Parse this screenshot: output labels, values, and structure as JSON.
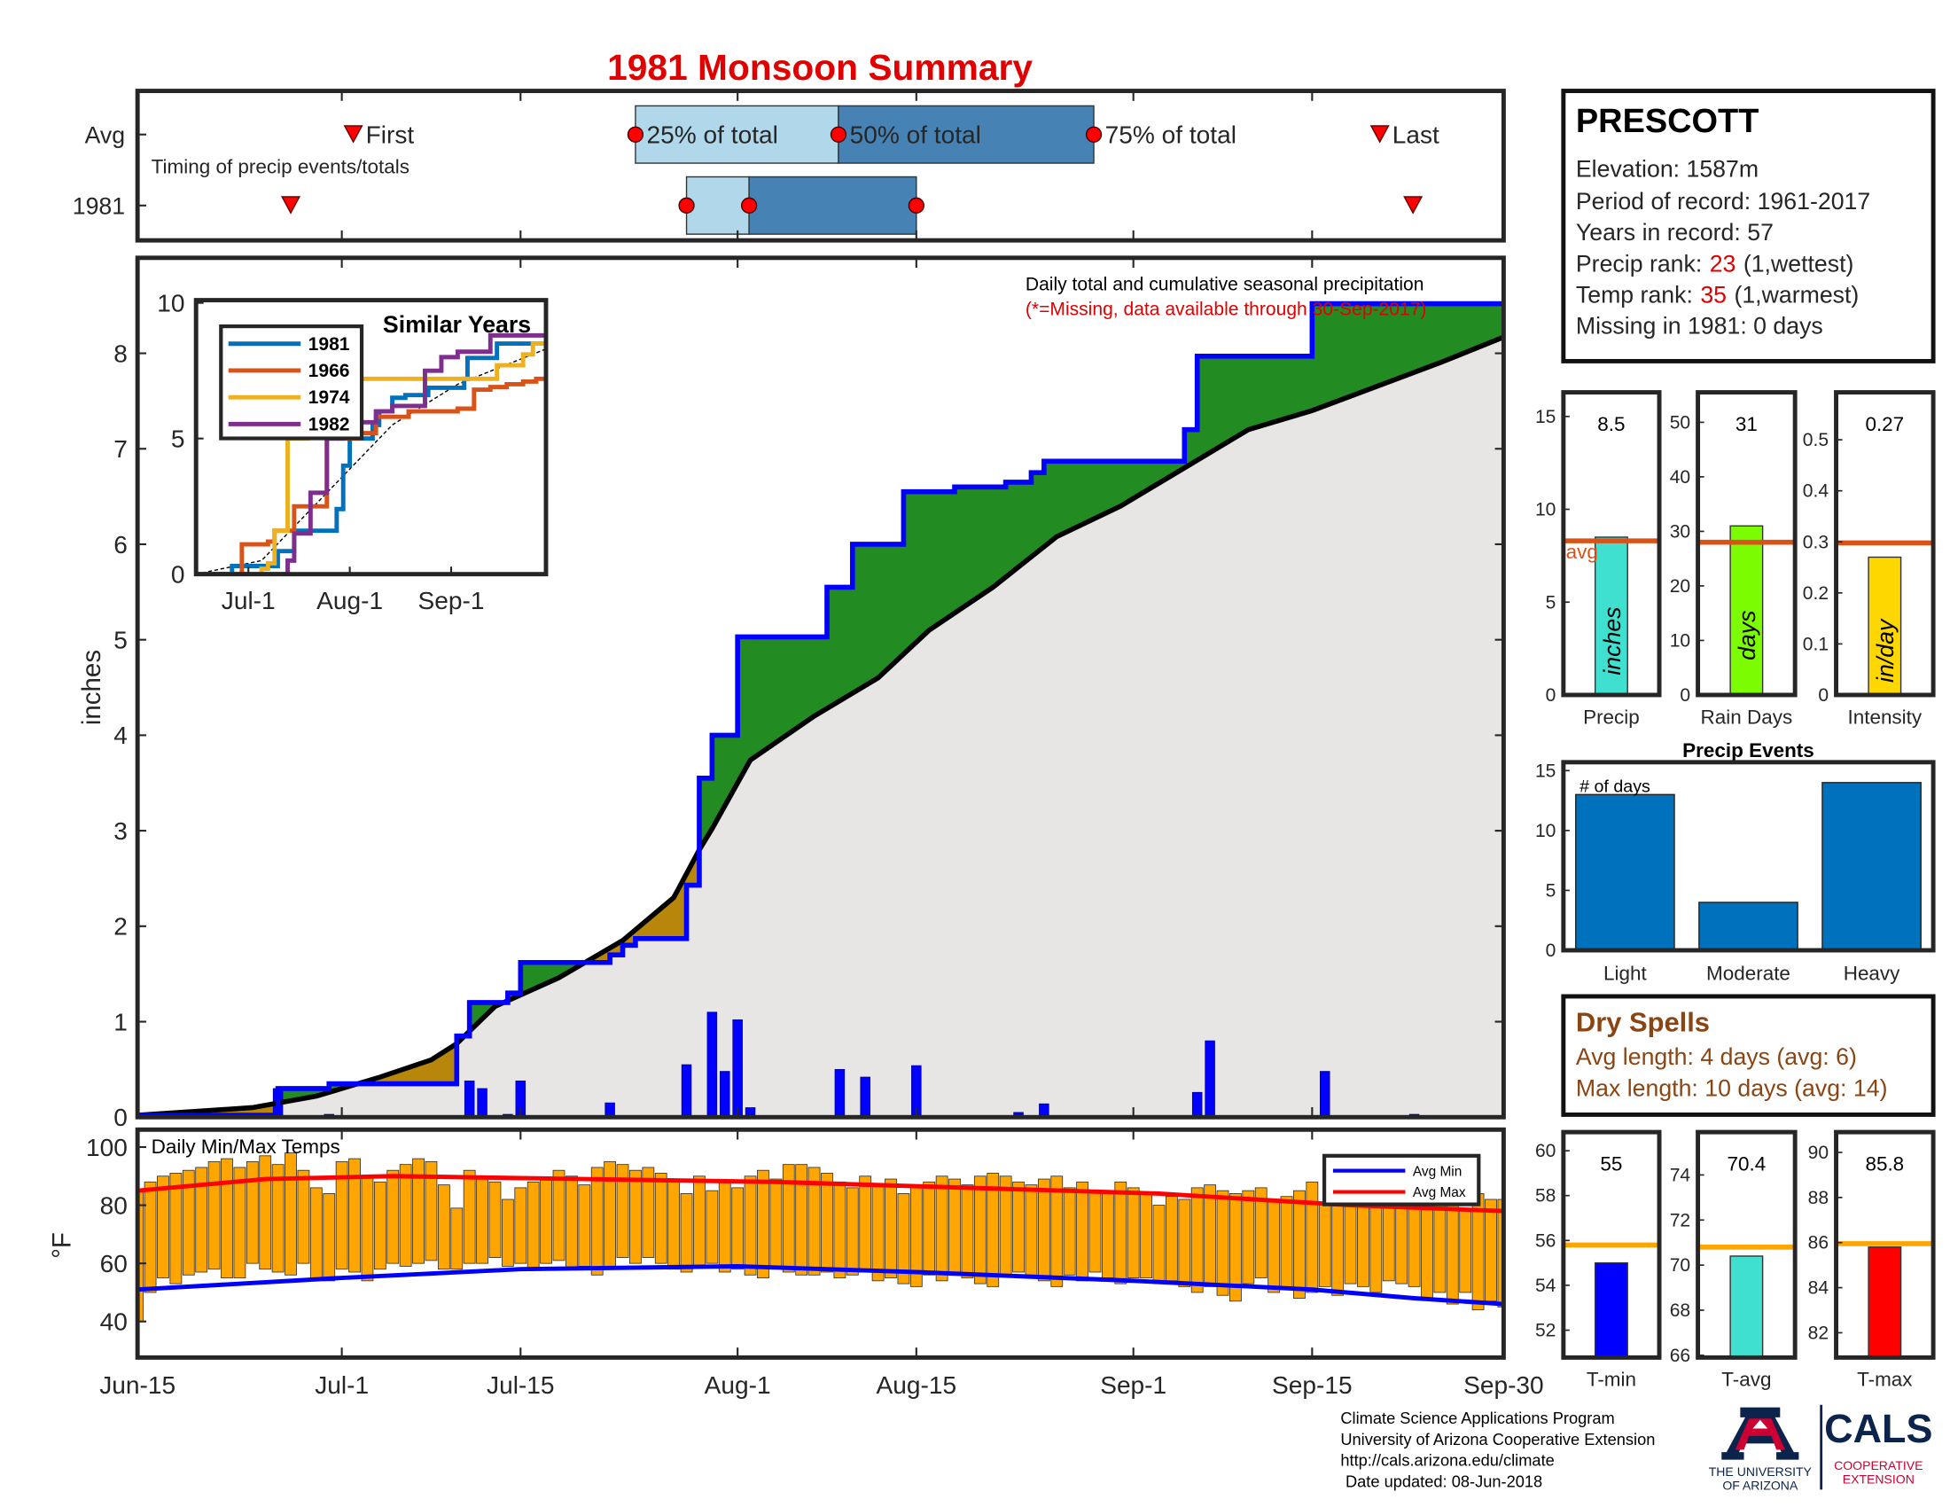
{
  "title": "1981 Monsoon Summary",
  "station": {
    "name": "PRESCOTT",
    "elevation": "Elevation: 1587m",
    "period": "Period of record: 1961-2017",
    "years": "Years in record: 57",
    "precip_rank": {
      "label": "Precip rank:",
      "value": 23,
      "note": "(1,wettest)"
    },
    "temp_rank": {
      "label": "Temp rank:",
      "value": 35,
      "note": "(1,warmest)"
    },
    "missing": "Missing in 1981: 0 days"
  },
  "dry_spells": {
    "title": "Dry Spells",
    "avg": "Avg length: 4 days (avg: 6)",
    "max": "Max length: 10 days (avg: 14)"
  },
  "footer": [
    "Climate Science Applications Program",
    "University of Arizona Cooperative Extension",
    "http://cals.arizona.edu/climate",
    "Date updated: 08-Jun-2018"
  ],
  "logos": {
    "university": [
      "THE UNIVERSITY",
      "OF ARIZONA"
    ],
    "cals": "CALS",
    "cals_sub": [
      "COOPERATIVE",
      "EXTENSION"
    ]
  },
  "chart_data": [
    {
      "type": "timing",
      "note": "Timing of precip events/totals",
      "xlim": [
        0,
        107
      ],
      "xticks": [
        0,
        16,
        30,
        47,
        61,
        78,
        92,
        107
      ],
      "marker_labels": {
        "first": "First",
        "p25": "25% of total",
        "p50": "50% of total",
        "p75": "75% of total",
        "last": "Last"
      },
      "rows": [
        {
          "label": "Avg",
          "first": 16.9,
          "p25": 39,
          "p50": 54.9,
          "p75": 74.9,
          "last": 97.3
        },
        {
          "label": "1981",
          "first": 12,
          "p25": 43,
          "p50": 47.9,
          "p75": 61,
          "last": 99.9
        }
      ],
      "colors": {
        "p25": "#b0d8ea",
        "p50": "#4682b4",
        "marker": "#ff0000"
      }
    },
    {
      "type": "step-area",
      "annotation": "Daily total and cumulative seasonal precipitation",
      "note": "(*=Missing, data available through 30-Sep-2017)",
      "ylabel": "inches",
      "xlim": [
        0,
        107
      ],
      "ylim": [
        0,
        9
      ],
      "yticks": [
        0,
        1,
        2,
        3,
        4,
        5,
        6,
        7,
        8
      ],
      "xticks": [
        0,
        16,
        30,
        47,
        61,
        78,
        92,
        107
      ],
      "observed": {
        "color": "#0000ff",
        "x": [
          0,
          11,
          15,
          25,
          26,
          29,
          30,
          37,
          38,
          39,
          43,
          44,
          45,
          47,
          54,
          56,
          60,
          64,
          68,
          70,
          71,
          82,
          83,
          92,
          107
        ],
        "values": [
          0.02,
          0.3,
          0.35,
          0.85,
          1.2,
          1.3,
          1.62,
          1.7,
          1.8,
          1.87,
          2.43,
          3.55,
          4.0,
          5.03,
          5.55,
          6.0,
          6.55,
          6.6,
          6.65,
          6.75,
          6.87,
          7.2,
          7.97,
          8.52,
          8.52
        ]
      },
      "average": {
        "color": "#000000",
        "x": [
          0,
          9,
          14,
          19,
          23,
          25,
          28,
          33,
          38,
          42,
          44,
          45,
          48,
          53,
          58,
          62,
          67,
          72,
          77,
          82,
          87,
          92,
          97,
          102,
          107
        ],
        "values": [
          0.02,
          0.1,
          0.22,
          0.42,
          0.6,
          0.77,
          1.16,
          1.46,
          1.85,
          2.3,
          2.8,
          3.02,
          3.74,
          4.2,
          4.6,
          5.1,
          5.55,
          6.08,
          6.4,
          6.8,
          7.2,
          7.4,
          7.65,
          7.9,
          8.17
        ]
      },
      "daily": {
        "color": "#0000ff",
        "x": [
          11,
          15,
          26,
          27,
          29,
          30,
          37,
          43,
          45,
          46,
          47,
          48,
          55,
          57,
          61,
          69,
          71,
          83,
          84,
          93,
          100
        ],
        "values": [
          0.3,
          0.03,
          0.38,
          0.3,
          0.03,
          0.38,
          0.15,
          0.55,
          1.1,
          0.48,
          1.02,
          0.1,
          0.5,
          0.42,
          0.54,
          0.05,
          0.14,
          0.26,
          0.8,
          0.48,
          0.03
        ]
      },
      "above_color": "#228b22",
      "below_color": "#b8860b",
      "base_color": "#e8e6e5"
    },
    {
      "type": "line",
      "title": "Similar Years",
      "xlim": [
        0,
        107
      ],
      "ylim": [
        0,
        10.1
      ],
      "yticks": [
        0,
        5,
        10
      ],
      "xticks": [
        {
          "value": 16,
          "label": "Jul-1"
        },
        {
          "value": 47,
          "label": "Aug-1"
        },
        {
          "value": 78,
          "label": "Sep-1"
        }
      ],
      "series": [
        {
          "name": "1981",
          "color": "#0072bd",
          "x": [
            0,
            11,
            25,
            30,
            43,
            45,
            47,
            54,
            56,
            60,
            64,
            71,
            82,
            83,
            92,
            107
          ],
          "values": [
            0,
            0.3,
            0.85,
            1.6,
            2.4,
            4.0,
            5.0,
            5.5,
            6.0,
            6.5,
            6.6,
            6.87,
            7.2,
            7.97,
            8.5,
            8.5
          ]
        },
        {
          "name": "1966",
          "color": "#d95319",
          "x": [
            0,
            12,
            14,
            22,
            24,
            30,
            40,
            50,
            55,
            65,
            72,
            80,
            85,
            90,
            95,
            100,
            104,
            107
          ],
          "values": [
            0,
            0,
            1.1,
            1.2,
            1.6,
            2.5,
            5.0,
            5.2,
            5.8,
            6.0,
            6.0,
            6.1,
            6.8,
            6.9,
            7.0,
            7.1,
            7.2,
            7.1
          ]
        },
        {
          "name": "1974",
          "color": "#edb120",
          "x": [
            0,
            20,
            22,
            24,
            28,
            34,
            40,
            60,
            85,
            92,
            100,
            103,
            107
          ],
          "values": [
            0,
            0.2,
            0.4,
            1.6,
            5.0,
            7.0,
            7.2,
            7.2,
            7.2,
            7.7,
            8.1,
            8.5,
            9.2
          ]
        },
        {
          "name": "1982",
          "color": "#7e2f8e",
          "x": [
            0,
            26,
            28,
            30,
            35,
            40,
            45,
            50,
            55,
            60,
            70,
            75,
            80,
            90,
            100,
            107
          ],
          "values": [
            0,
            0,
            0.5,
            1.5,
            3.0,
            5.0,
            5.2,
            5.6,
            6.0,
            6.2,
            7.5,
            8.0,
            8.2,
            8.8,
            8.8,
            8.8
          ]
        }
      ],
      "average": {
        "color": "#000000",
        "x": [
          0,
          20,
          40,
          60,
          80,
          107
        ],
        "values": [
          0,
          0.5,
          3,
          5.5,
          7,
          8.3
        ]
      }
    },
    {
      "type": "range-bar",
      "title": "Daily Min/Max Temps",
      "ylabel": "°F",
      "xlim": [
        0,
        107
      ],
      "ylim": [
        27.6,
        106
      ],
      "yticks": [
        40,
        60,
        80,
        100
      ],
      "xticks": [
        {
          "value": 0,
          "label": "Jun-15"
        },
        {
          "value": 16,
          "label": "Jul-1"
        },
        {
          "value": 30,
          "label": "Jul-15"
        },
        {
          "value": 47,
          "label": "Aug-1"
        },
        {
          "value": 61,
          "label": "Aug-15"
        },
        {
          "value": 78,
          "label": "Sep-1"
        },
        {
          "value": 92,
          "label": "Sep-15"
        },
        {
          "value": 107,
          "label": "Sep-30"
        }
      ],
      "color": "#ffa500",
      "x": [
        0,
        1,
        2,
        3,
        4,
        5,
        6,
        7,
        8,
        9,
        10,
        11,
        12,
        13,
        14,
        15,
        16,
        17,
        18,
        19,
        20,
        21,
        22,
        23,
        24,
        25,
        26,
        27,
        28,
        29,
        30,
        31,
        32,
        33,
        34,
        35,
        36,
        37,
        38,
        39,
        40,
        41,
        42,
        43,
        44,
        45,
        46,
        47,
        48,
        49,
        50,
        51,
        52,
        53,
        54,
        55,
        56,
        57,
        58,
        59,
        60,
        61,
        62,
        63,
        64,
        65,
        66,
        67,
        68,
        69,
        70,
        71,
        72,
        73,
        74,
        75,
        76,
        77,
        78,
        79,
        80,
        81,
        82,
        83,
        84,
        85,
        86,
        87,
        88,
        89,
        90,
        91,
        92,
        93,
        94,
        95,
        96,
        97,
        98,
        99,
        100,
        101,
        102,
        103,
        104,
        105,
        106,
        107
      ],
      "max": [
        85,
        88,
        90,
        91,
        92,
        93,
        95,
        96,
        93,
        95,
        97,
        94,
        98,
        92,
        86,
        84,
        95,
        96,
        90,
        88,
        92,
        94,
        96,
        95,
        87,
        79,
        92,
        90,
        88,
        82,
        86,
        88,
        89,
        92,
        90,
        87,
        93,
        95,
        94,
        92,
        93,
        91,
        88,
        84,
        90,
        85,
        88,
        86,
        90,
        92,
        89,
        94,
        94,
        93,
        91,
        88,
        86,
        90,
        87,
        89,
        84,
        86,
        88,
        90,
        89,
        87,
        90,
        91,
        90,
        88,
        87,
        89,
        90,
        86,
        88,
        85,
        84,
        88,
        86,
        84,
        80,
        83,
        82,
        86,
        87,
        85,
        84,
        85,
        86,
        82,
        83,
        85,
        88,
        80,
        84,
        82,
        83,
        86,
        87,
        82,
        84,
        80,
        81,
        80,
        78,
        84,
        82,
        82
      ],
      "min": [
        40,
        50,
        55,
        53,
        56,
        57,
        58,
        55,
        55,
        60,
        58,
        57,
        56,
        60,
        55,
        54,
        58,
        57,
        54,
        58,
        60,
        59,
        60,
        61,
        58,
        58,
        60,
        60,
        62,
        59,
        60,
        58,
        60,
        61,
        58,
        59,
        56,
        58,
        62,
        60,
        62,
        60,
        58,
        57,
        59,
        60,
        57,
        58,
        56,
        55,
        58,
        57,
        56,
        56,
        57,
        55,
        56,
        57,
        54,
        55,
        53,
        52,
        56,
        54,
        56,
        55,
        53,
        52,
        56,
        57,
        55,
        54,
        52,
        56,
        54,
        57,
        55,
        53,
        55,
        55,
        53,
        54,
        52,
        50,
        52,
        49,
        47,
        53,
        55,
        50,
        52,
        48,
        50,
        52,
        49,
        53,
        52,
        50,
        54,
        53,
        52,
        48,
        50,
        46,
        50,
        44,
        47,
        45
      ],
      "series": [
        {
          "name": "Avg Min",
          "color": "#0000ff",
          "x": [
            0,
            16,
            30,
            47,
            61,
            78,
            92,
            100,
            107
          ],
          "values": [
            51,
            55,
            58,
            59,
            57,
            54,
            51,
            48,
            46
          ]
        },
        {
          "name": "Avg Max",
          "color": "#ff0000",
          "x": [
            0,
            10,
            20,
            35,
            50,
            65,
            80,
            95,
            107
          ],
          "values": [
            85,
            89,
            90,
            89,
            88,
            86,
            84,
            80,
            78
          ]
        }
      ]
    },
    {
      "type": "summary-bar",
      "label": "Precip",
      "unit": "inches",
      "value": 8.5,
      "avg": 8.3,
      "avg_label": "avg",
      "color": "#40e0d0",
      "avg_color": "#d95319",
      "ylim": [
        0,
        16.3
      ],
      "yticks": [
        0,
        5,
        10,
        15
      ]
    },
    {
      "type": "summary-bar",
      "label": "Rain Days",
      "unit": "days",
      "value": 31,
      "avg": 28,
      "color": "#7cfc00",
      "avg_color": "#d95319",
      "ylim": [
        0,
        55.5
      ],
      "yticks": [
        0,
        10,
        20,
        30,
        40,
        50
      ]
    },
    {
      "type": "summary-bar",
      "label": "Intensity",
      "unit": "in/day",
      "value": 0.27,
      "avg": 0.298,
      "color": "#ffd700",
      "avg_color": "#d95319",
      "ylim": [
        0,
        0.593
      ],
      "yticks": [
        0,
        0.1,
        0.2,
        0.3,
        0.4,
        0.5
      ]
    },
    {
      "type": "bar",
      "title": "Precip Events",
      "ylabel": "# of days",
      "categories": [
        "Light",
        "Moderate",
        "Heavy"
      ],
      "values": [
        13,
        4,
        14
      ],
      "color": "#0072bd",
      "ylim": [
        0,
        15.7
      ],
      "yticks": [
        0,
        5,
        10,
        15
      ]
    },
    {
      "type": "summary-bar",
      "label": "T-min",
      "value": 55,
      "avg": 55.8,
      "color": "#0000ff",
      "avg_color": "#ffa500",
      "ylim": [
        50.78,
        60.83
      ],
      "yticks": [
        52,
        54,
        56,
        58,
        60
      ]
    },
    {
      "type": "summary-bar",
      "label": "T-avg",
      "value": 70.4,
      "avg": 70.8,
      "color": "#40e0d0",
      "avg_color": "#ffa500",
      "ylim": [
        65.9,
        75.9
      ],
      "yticks": [
        66,
        68,
        70,
        72,
        74
      ]
    },
    {
      "type": "summary-bar",
      "label": "T-max",
      "value": 85.8,
      "avg": 85.95,
      "color": "#ff0000",
      "avg_color": "#ffa500",
      "ylim": [
        80.9,
        90.9
      ],
      "yticks": [
        82,
        84,
        86,
        88,
        90
      ]
    }
  ]
}
